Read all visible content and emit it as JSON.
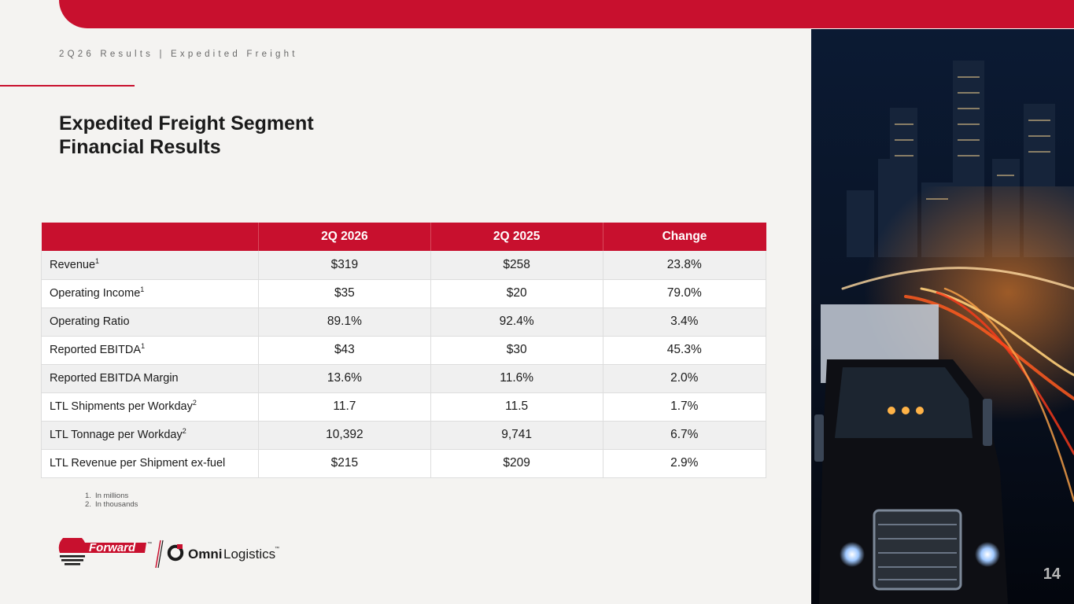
{
  "header": {
    "breadcrumb": "2Q26 Results | Expedited Freight"
  },
  "title": {
    "line1": "Expedited Freight Segment",
    "line2": "Financial Results"
  },
  "table": {
    "columns": [
      "",
      "2Q 2026",
      "2Q 2025",
      "Change"
    ],
    "rows": [
      {
        "metric": "Revenue",
        "note": "1",
        "q2026": "$319",
        "q2025": "$258",
        "change": "23.8%"
      },
      {
        "metric": "Operating Income",
        "note": "1",
        "q2026": "$35",
        "q2025": "$20",
        "change": "79.0%"
      },
      {
        "metric": "Operating Ratio",
        "note": "",
        "q2026": "89.1%",
        "q2025": "92.4%",
        "change": "3.4%"
      },
      {
        "metric": "Reported EBITDA",
        "note": "1",
        "q2026": "$43",
        "q2025": "$30",
        "change": "45.3%"
      },
      {
        "metric": "Reported EBITDA Margin",
        "note": "",
        "q2026": "13.6%",
        "q2025": "11.6%",
        "change": "2.0%"
      },
      {
        "metric": "LTL Shipments per Workday",
        "note": "2",
        "q2026": "11.7",
        "q2025": "11.5",
        "change": "1.7%"
      },
      {
        "metric": "LTL Tonnage per Workday",
        "note": "2",
        "q2026": "10,392",
        "q2025": "9,741",
        "change": "6.7%"
      },
      {
        "metric": "LTL Revenue per Shipment ex-fuel",
        "note": "",
        "q2026": "$215",
        "q2025": "$209",
        "change": "2.9%"
      }
    ]
  },
  "footnotes": [
    {
      "num": "1.",
      "text": "In millions"
    },
    {
      "num": "2.",
      "text": "In thousands"
    }
  ],
  "logos": {
    "forward": "Forward",
    "forward_mark": "™",
    "omni_bold": "Omni",
    "omni_light": "Logistics",
    "omni_mark": "™"
  },
  "page_number": "14",
  "colors": {
    "brand_red": "#c8102e",
    "background": "#f4f3f1"
  }
}
